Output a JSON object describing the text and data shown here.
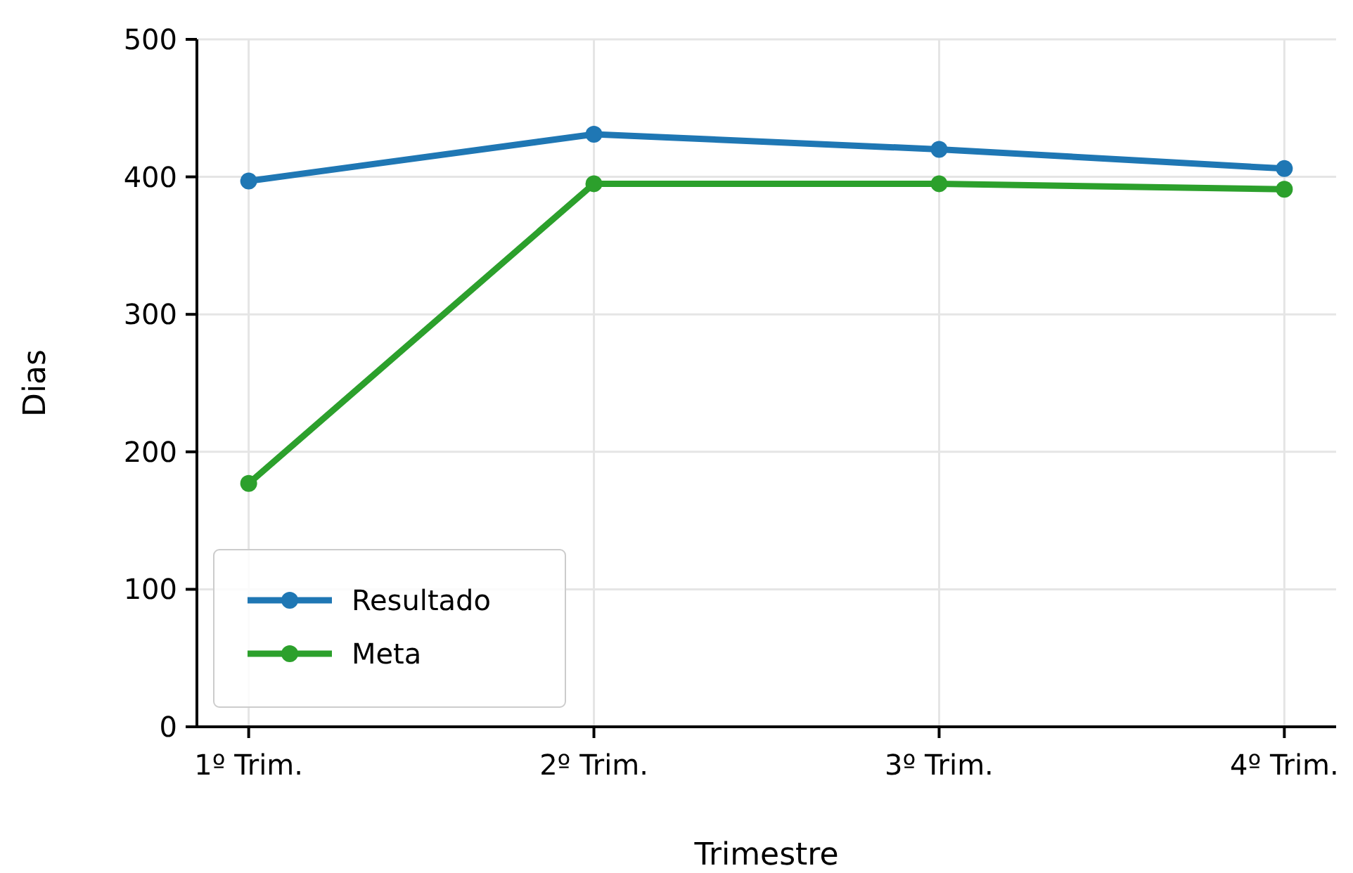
{
  "chart_data": {
    "type": "line",
    "xlabel": "Trimestre",
    "ylabel": "Dias",
    "categories": [
      "1º Trim.",
      "2º Trim.",
      "3º Trim.",
      "4º Trim."
    ],
    "series": [
      {
        "name": "Resultado",
        "color": "#1f77b4",
        "values": [
          397,
          431,
          420,
          406
        ]
      },
      {
        "name": "Meta",
        "color": "#2ca02c",
        "values": [
          177,
          395,
          395,
          391
        ]
      }
    ],
    "ylim": [
      0,
      500
    ],
    "yticks": [
      0,
      100,
      200,
      300,
      400,
      500
    ],
    "grid": true,
    "legend": "bottom left",
    "marker": "circle",
    "line_style": "solid"
  }
}
